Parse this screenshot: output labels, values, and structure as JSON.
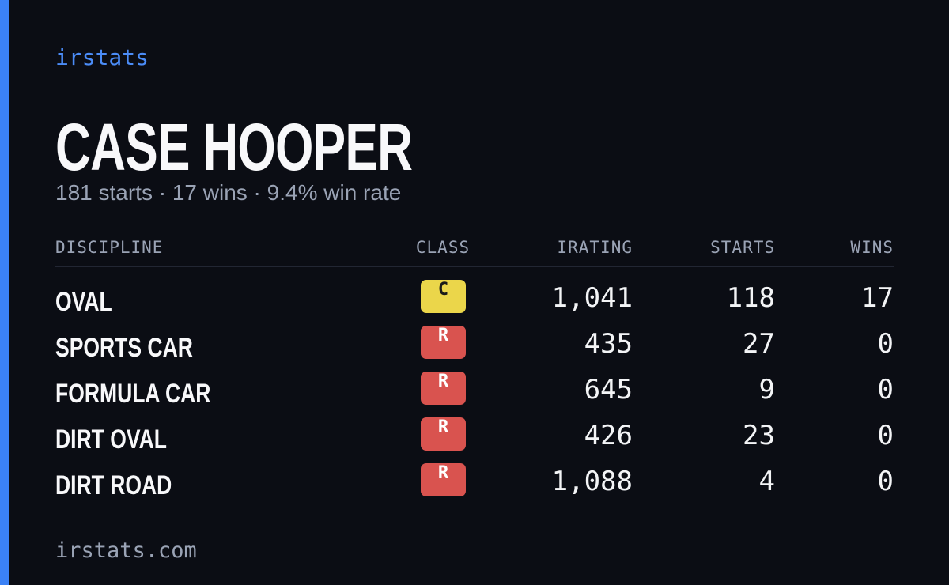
{
  "brand": "irstats",
  "driver": {
    "name": "CASE HOOPER",
    "summary": "181 starts · 17 wins · 9.4% win rate"
  },
  "table": {
    "headers": [
      "DISCIPLINE",
      "CLASS",
      "IRATING",
      "STARTS",
      "WINS"
    ],
    "rows": [
      {
        "discipline": "OVAL",
        "class": "C",
        "badge_color": "#ebd64a",
        "badge_text_color": "#1a1a1a",
        "irating": "1,041",
        "starts": "118",
        "wins": "17"
      },
      {
        "discipline": "SPORTS CAR",
        "class": "R",
        "badge_color": "#d9534f",
        "badge_text_color": "#ffffff",
        "irating": "435",
        "starts": "27",
        "wins": "0"
      },
      {
        "discipline": "FORMULA CAR",
        "class": "R",
        "badge_color": "#d9534f",
        "badge_text_color": "#ffffff",
        "irating": "645",
        "starts": "9",
        "wins": "0"
      },
      {
        "discipline": "DIRT OVAL",
        "class": "R",
        "badge_color": "#d9534f",
        "badge_text_color": "#ffffff",
        "irating": "426",
        "starts": "23",
        "wins": "0"
      },
      {
        "discipline": "DIRT ROAD",
        "class": "R",
        "badge_color": "#d9534f",
        "badge_text_color": "#ffffff",
        "irating": "1,088",
        "starts": "4",
        "wins": "0"
      }
    ]
  },
  "footer": "irstats.com"
}
